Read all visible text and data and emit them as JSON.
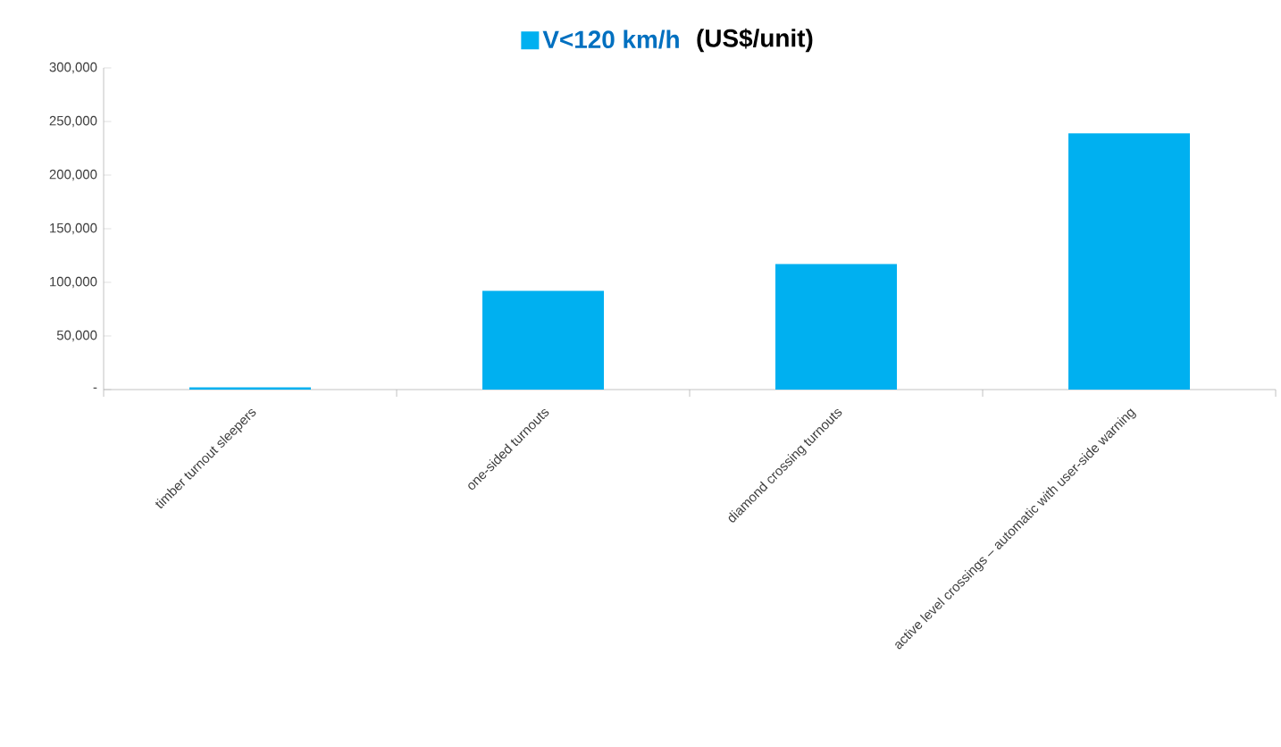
{
  "chart_data": {
    "type": "bar",
    "title": "(US$/unit)",
    "categories": [
      "timber turnout sleepers",
      "one-sided turnouts",
      "diamond crossing turnouts",
      "active level crossings – automatic with user-side warning"
    ],
    "series": [
      {
        "name": "V<120 km/h",
        "color": "#00b0f0",
        "values": [
          2000,
          92000,
          117000,
          239000
        ]
      }
    ],
    "ylim": [
      0,
      300000
    ],
    "yticks": [
      {
        "value": 0,
        "label": "-"
      },
      {
        "value": 50000,
        "label": "50,000"
      },
      {
        "value": 100000,
        "label": "100,000"
      },
      {
        "value": 150000,
        "label": "150,000"
      },
      {
        "value": 200000,
        "label": "200,000"
      },
      {
        "value": 250000,
        "label": "250,000"
      },
      {
        "value": 300000,
        "label": "300,000"
      }
    ],
    "grid": false,
    "legend": "top"
  }
}
